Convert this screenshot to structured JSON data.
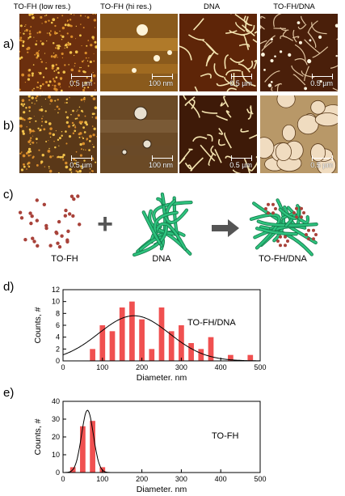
{
  "columns": [
    "TO-FH (low res.)",
    "TO-FH (hi res.)",
    "DNA",
    "TO-FH/DNA"
  ],
  "row_labels": [
    "a)",
    "b)",
    "c)",
    "d)",
    "e)"
  ],
  "scale_bars": {
    "a": [
      "0.5 µm",
      "100 nm",
      "0.5 µm",
      "0.5 µm"
    ],
    "b": [
      "0.5 µm",
      "100 nm",
      "0.5 µm",
      "0.5 µm"
    ]
  },
  "schematic": {
    "labels": [
      "TO-FH",
      "DNA",
      "TO-FH/DNA"
    ],
    "plus": "+",
    "colors": {
      "particle": "#a8423a",
      "dna": "#2ec27e"
    }
  },
  "chart_data": [
    {
      "type": "bar",
      "panel": "d)",
      "series_label": "TO-FH/DNA",
      "xlabel": "Diameter, nm",
      "ylabel": "Counts, #",
      "xlim": [
        0,
        500
      ],
      "ylim": [
        0,
        12
      ],
      "xticks": [
        0,
        100,
        200,
        300,
        400,
        500
      ],
      "yticks": [
        0,
        2,
        4,
        6,
        8,
        10,
        12
      ],
      "x": [
        75,
        100,
        125,
        150,
        175,
        200,
        225,
        250,
        275,
        300,
        325,
        350,
        375,
        425,
        475
      ],
      "values": [
        2,
        6,
        5,
        9,
        10,
        7,
        2,
        9,
        5,
        6,
        3,
        2,
        4,
        1,
        1
      ],
      "fit": {
        "type": "gaussian",
        "center": 180,
        "sigma": 90,
        "amplitude": 7.6
      },
      "bar_color": "#f05050"
    },
    {
      "type": "bar",
      "panel": "e)",
      "series_label": "TO-FH",
      "xlabel": "Diameter, nm",
      "ylabel": "Counts, #",
      "xlim": [
        0,
        500
      ],
      "ylim": [
        0,
        40
      ],
      "xticks": [
        0,
        100,
        200,
        300,
        400,
        500
      ],
      "yticks": [
        0,
        10,
        20,
        30,
        40
      ],
      "x": [
        25,
        50,
        75,
        100
      ],
      "values": [
        3,
        26,
        29,
        3
      ],
      "fit": {
        "type": "gaussian",
        "center": 62,
        "sigma": 15,
        "amplitude": 35
      },
      "bar_color": "#f05050"
    }
  ]
}
